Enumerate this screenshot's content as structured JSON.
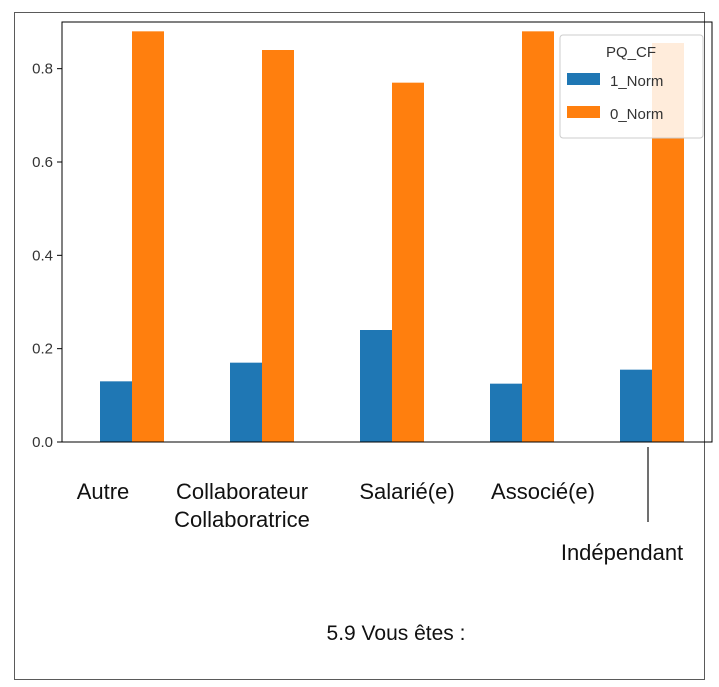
{
  "chart_data": {
    "type": "bar",
    "categories": [
      "Autre",
      "Collaborateur\nCollaboratrice",
      "Salarié(e)",
      "Associé(e)",
      "Indépendant"
    ],
    "series": [
      {
        "name": "1_Norm",
        "color": "#1f77b4",
        "values": [
          0.13,
          0.17,
          0.24,
          0.125,
          0.155
        ]
      },
      {
        "name": "0_Norm",
        "color": "#ff7f0e",
        "values": [
          0.88,
          0.84,
          0.77,
          0.88,
          0.855
        ]
      }
    ],
    "yticks": [
      "0.0",
      "0.2",
      "0.4",
      "0.6",
      "0.8"
    ],
    "ylim": [
      0,
      0.9
    ],
    "legend": {
      "title": "PQ_CF",
      "position": "top-right"
    },
    "caption": "5.9 Vous êtes :",
    "grid": false
  }
}
